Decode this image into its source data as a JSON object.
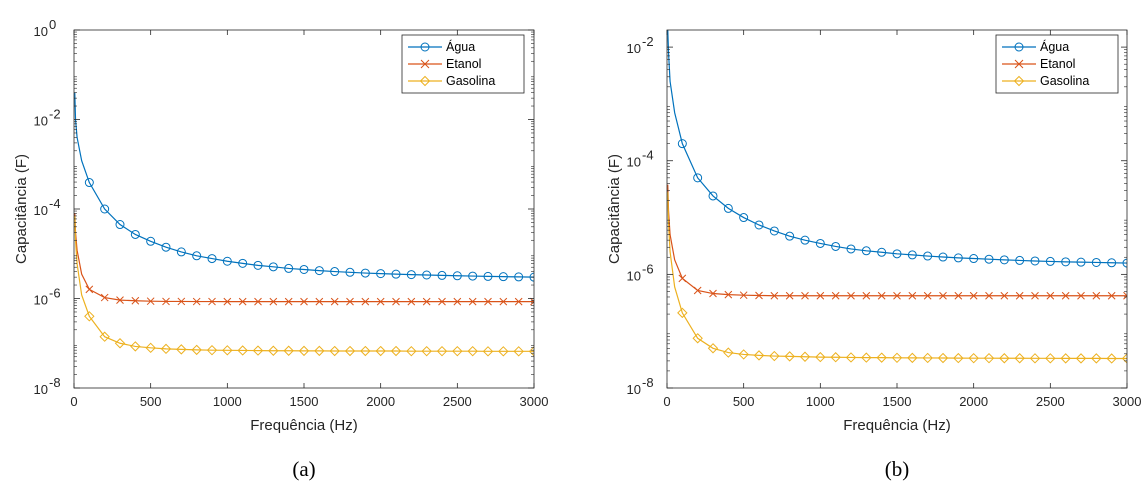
{
  "chart_data": [
    {
      "type": "line",
      "panel_label": "(a)",
      "xlabel": "Frequência (Hz)",
      "ylabel": "Capacitância (F)",
      "xlim": [
        0,
        3000
      ],
      "ylim": [
        1e-08,
        1
      ],
      "yscale": "log",
      "xticks": [
        0,
        500,
        1000,
        1500,
        2000,
        2500,
        3000
      ],
      "xtick_labels": [
        "0",
        "500",
        "1000",
        "1500",
        "2000",
        "2500",
        "3000"
      ],
      "yticks": [
        1e-08,
        1e-06,
        0.0001,
        0.01,
        1
      ],
      "ytick_labels": [
        {
          "base": "10",
          "exp": "-8"
        },
        {
          "base": "10",
          "exp": "-6"
        },
        {
          "base": "10",
          "exp": "-4"
        },
        {
          "base": "10",
          "exp": "-2"
        },
        {
          "base": "10",
          "exp": "0"
        }
      ],
      "grid": false,
      "legend_position": "top-right",
      "series": [
        {
          "name": "Água",
          "color": "#0072BD",
          "marker": "circle",
          "x": [
            5,
            10,
            20,
            50,
            100,
            200,
            300,
            400,
            500,
            600,
            700,
            800,
            900,
            1000,
            1100,
            1200,
            1300,
            1400,
            1500,
            1600,
            1700,
            1800,
            1900,
            2000,
            2100,
            2200,
            2300,
            2400,
            2500,
            2600,
            2700,
            2800,
            2900,
            3000
          ],
          "y": [
            0.04,
            0.01,
            0.004,
            0.0012,
            0.00039,
            0.0001,
            4.5e-05,
            2.7e-05,
            1.9e-05,
            1.4e-05,
            1.1e-05,
            9e-06,
            7.8e-06,
            6.8e-06,
            6.1e-06,
            5.5e-06,
            5.1e-06,
            4.7e-06,
            4.45e-06,
            4.2e-06,
            4e-06,
            3.85e-06,
            3.7e-06,
            3.6e-06,
            3.5e-06,
            3.42e-06,
            3.35e-06,
            3.28e-06,
            3.22e-06,
            3.17e-06,
            3.12e-06,
            3.08e-06,
            3.04e-06,
            3e-06
          ]
        },
        {
          "name": "Etanol",
          "color": "#D95319",
          "marker": "x",
          "x": [
            5,
            10,
            20,
            50,
            100,
            200,
            300,
            400,
            500,
            600,
            700,
            800,
            900,
            1000,
            1100,
            1200,
            1300,
            1400,
            1500,
            1600,
            1700,
            1800,
            1900,
            2000,
            2100,
            2200,
            2300,
            2400,
            2500,
            2600,
            2700,
            2800,
            2900,
            3000
          ],
          "y": [
            8e-05,
            3e-05,
            1.2e-05,
            3.5e-06,
            1.6e-06,
            1.05e-06,
            9.2e-07,
            8.9e-07,
            8.7e-07,
            8.6e-07,
            8.6e-07,
            8.55e-07,
            8.55e-07,
            8.5e-07,
            8.5e-07,
            8.5e-07,
            8.5e-07,
            8.5e-07,
            8.5e-07,
            8.5e-07,
            8.5e-07,
            8.5e-07,
            8.5e-07,
            8.5e-07,
            8.5e-07,
            8.5e-07,
            8.5e-07,
            8.5e-07,
            8.5e-07,
            8.5e-07,
            8.5e-07,
            8.5e-07,
            8.5e-07,
            8.5e-07
          ]
        },
        {
          "name": "Gasolina",
          "color": "#EDB120",
          "marker": "diamond",
          "x": [
            5,
            10,
            20,
            50,
            100,
            200,
            300,
            400,
            500,
            600,
            700,
            800,
            900,
            1000,
            1100,
            1200,
            1300,
            1400,
            1500,
            1600,
            1700,
            1800,
            1900,
            2000,
            2100,
            2200,
            2300,
            2400,
            2500,
            2600,
            2700,
            2800,
            2900,
            3000
          ],
          "y": [
            7e-05,
            2e-05,
            6e-06,
            1.2e-06,
            4e-07,
            1.4e-07,
            1e-07,
            8.5e-08,
            7.9e-08,
            7.5e-08,
            7.3e-08,
            7.1e-08,
            7e-08,
            6.95e-08,
            6.9e-08,
            6.85e-08,
            6.8e-08,
            6.8e-08,
            6.75e-08,
            6.75e-08,
            6.7e-08,
            6.7e-08,
            6.7e-08,
            6.7e-08,
            6.7e-08,
            6.65e-08,
            6.65e-08,
            6.65e-08,
            6.65e-08,
            6.65e-08,
            6.6e-08,
            6.6e-08,
            6.6e-08,
            6.6e-08
          ]
        }
      ]
    },
    {
      "type": "line",
      "panel_label": "(b)",
      "xlabel": "Frequência (Hz)",
      "ylabel": "Capacitância (F)",
      "xlim": [
        0,
        3000
      ],
      "ylim": [
        1e-08,
        0.02
      ],
      "yscale": "log",
      "xticks": [
        0,
        500,
        1000,
        1500,
        2000,
        2500,
        3000
      ],
      "xtick_labels": [
        "0",
        "500",
        "1000",
        "1500",
        "2000",
        "2500",
        "3000"
      ],
      "yticks": [
        1e-08,
        1e-06,
        0.0001,
        0.01
      ],
      "ytick_labels": [
        {
          "base": "10",
          "exp": "-8"
        },
        {
          "base": "10",
          "exp": "-6"
        },
        {
          "base": "10",
          "exp": "-4"
        },
        {
          "base": "10",
          "exp": "-2"
        }
      ],
      "grid": false,
      "legend_position": "top-right",
      "series": [
        {
          "name": "Água",
          "color": "#0072BD",
          "marker": "circle",
          "x": [
            5,
            10,
            20,
            50,
            100,
            200,
            300,
            400,
            500,
            600,
            700,
            800,
            900,
            1000,
            1100,
            1200,
            1300,
            1400,
            1500,
            1600,
            1700,
            1800,
            1900,
            2000,
            2100,
            2200,
            2300,
            2400,
            2500,
            2600,
            2700,
            2800,
            2900,
            3000
          ],
          "y": [
            0.02,
            0.008,
            0.0025,
            0.0007,
            0.0002,
            5e-05,
            2.4e-05,
            1.45e-05,
            1e-05,
            7.4e-06,
            5.8e-06,
            4.7e-06,
            4e-06,
            3.5e-06,
            3.1e-06,
            2.8e-06,
            2.6e-06,
            2.45e-06,
            2.3e-06,
            2.2e-06,
            2.1e-06,
            2.02e-06,
            1.95e-06,
            1.9e-06,
            1.85e-06,
            1.8e-06,
            1.76e-06,
            1.72e-06,
            1.69e-06,
            1.66e-06,
            1.64e-06,
            1.62e-06,
            1.6e-06,
            1.58e-06
          ]
        },
        {
          "name": "Etanol",
          "color": "#D95319",
          "marker": "x",
          "x": [
            5,
            10,
            20,
            50,
            100,
            200,
            300,
            400,
            500,
            600,
            700,
            800,
            900,
            1000,
            1100,
            1200,
            1300,
            1400,
            1500,
            1600,
            1700,
            1800,
            1900,
            2000,
            2100,
            2200,
            2300,
            2400,
            2500,
            2600,
            2700,
            2800,
            2900,
            3000
          ],
          "y": [
            3.8e-05,
            1.3e-05,
            5e-06,
            1.8e-06,
            8.5e-07,
            5.2e-07,
            4.6e-07,
            4.4e-07,
            4.3e-07,
            4.25e-07,
            4.2e-07,
            4.2e-07,
            4.2e-07,
            4.2e-07,
            4.2e-07,
            4.2e-07,
            4.2e-07,
            4.2e-07,
            4.2e-07,
            4.2e-07,
            4.2e-07,
            4.2e-07,
            4.2e-07,
            4.2e-07,
            4.2e-07,
            4.2e-07,
            4.2e-07,
            4.2e-07,
            4.2e-07,
            4.2e-07,
            4.2e-07,
            4.2e-07,
            4.2e-07,
            4.2e-07
          ]
        },
        {
          "name": "Gasolina",
          "color": "#EDB120",
          "marker": "diamond",
          "x": [
            5,
            10,
            20,
            50,
            100,
            200,
            300,
            400,
            500,
            600,
            700,
            800,
            900,
            1000,
            1100,
            1200,
            1300,
            1400,
            1500,
            1600,
            1700,
            1800,
            1900,
            2000,
            2100,
            2200,
            2300,
            2400,
            2500,
            2600,
            2700,
            2800,
            2900,
            3000
          ],
          "y": [
            2.8e-05,
            8e-06,
            2.5e-06,
            6e-07,
            2.1e-07,
            7.5e-08,
            5e-08,
            4.2e-08,
            3.9e-08,
            3.75e-08,
            3.65e-08,
            3.6e-08,
            3.55e-08,
            3.5e-08,
            3.48e-08,
            3.45e-08,
            3.43e-08,
            3.42e-08,
            3.4e-08,
            3.39e-08,
            3.38e-08,
            3.37e-08,
            3.36e-08,
            3.35e-08,
            3.35e-08,
            3.34e-08,
            3.34e-08,
            3.33e-08,
            3.33e-08,
            3.32e-08,
            3.32e-08,
            3.32e-08,
            3.31e-08,
            3.31e-08
          ]
        }
      ]
    }
  ]
}
